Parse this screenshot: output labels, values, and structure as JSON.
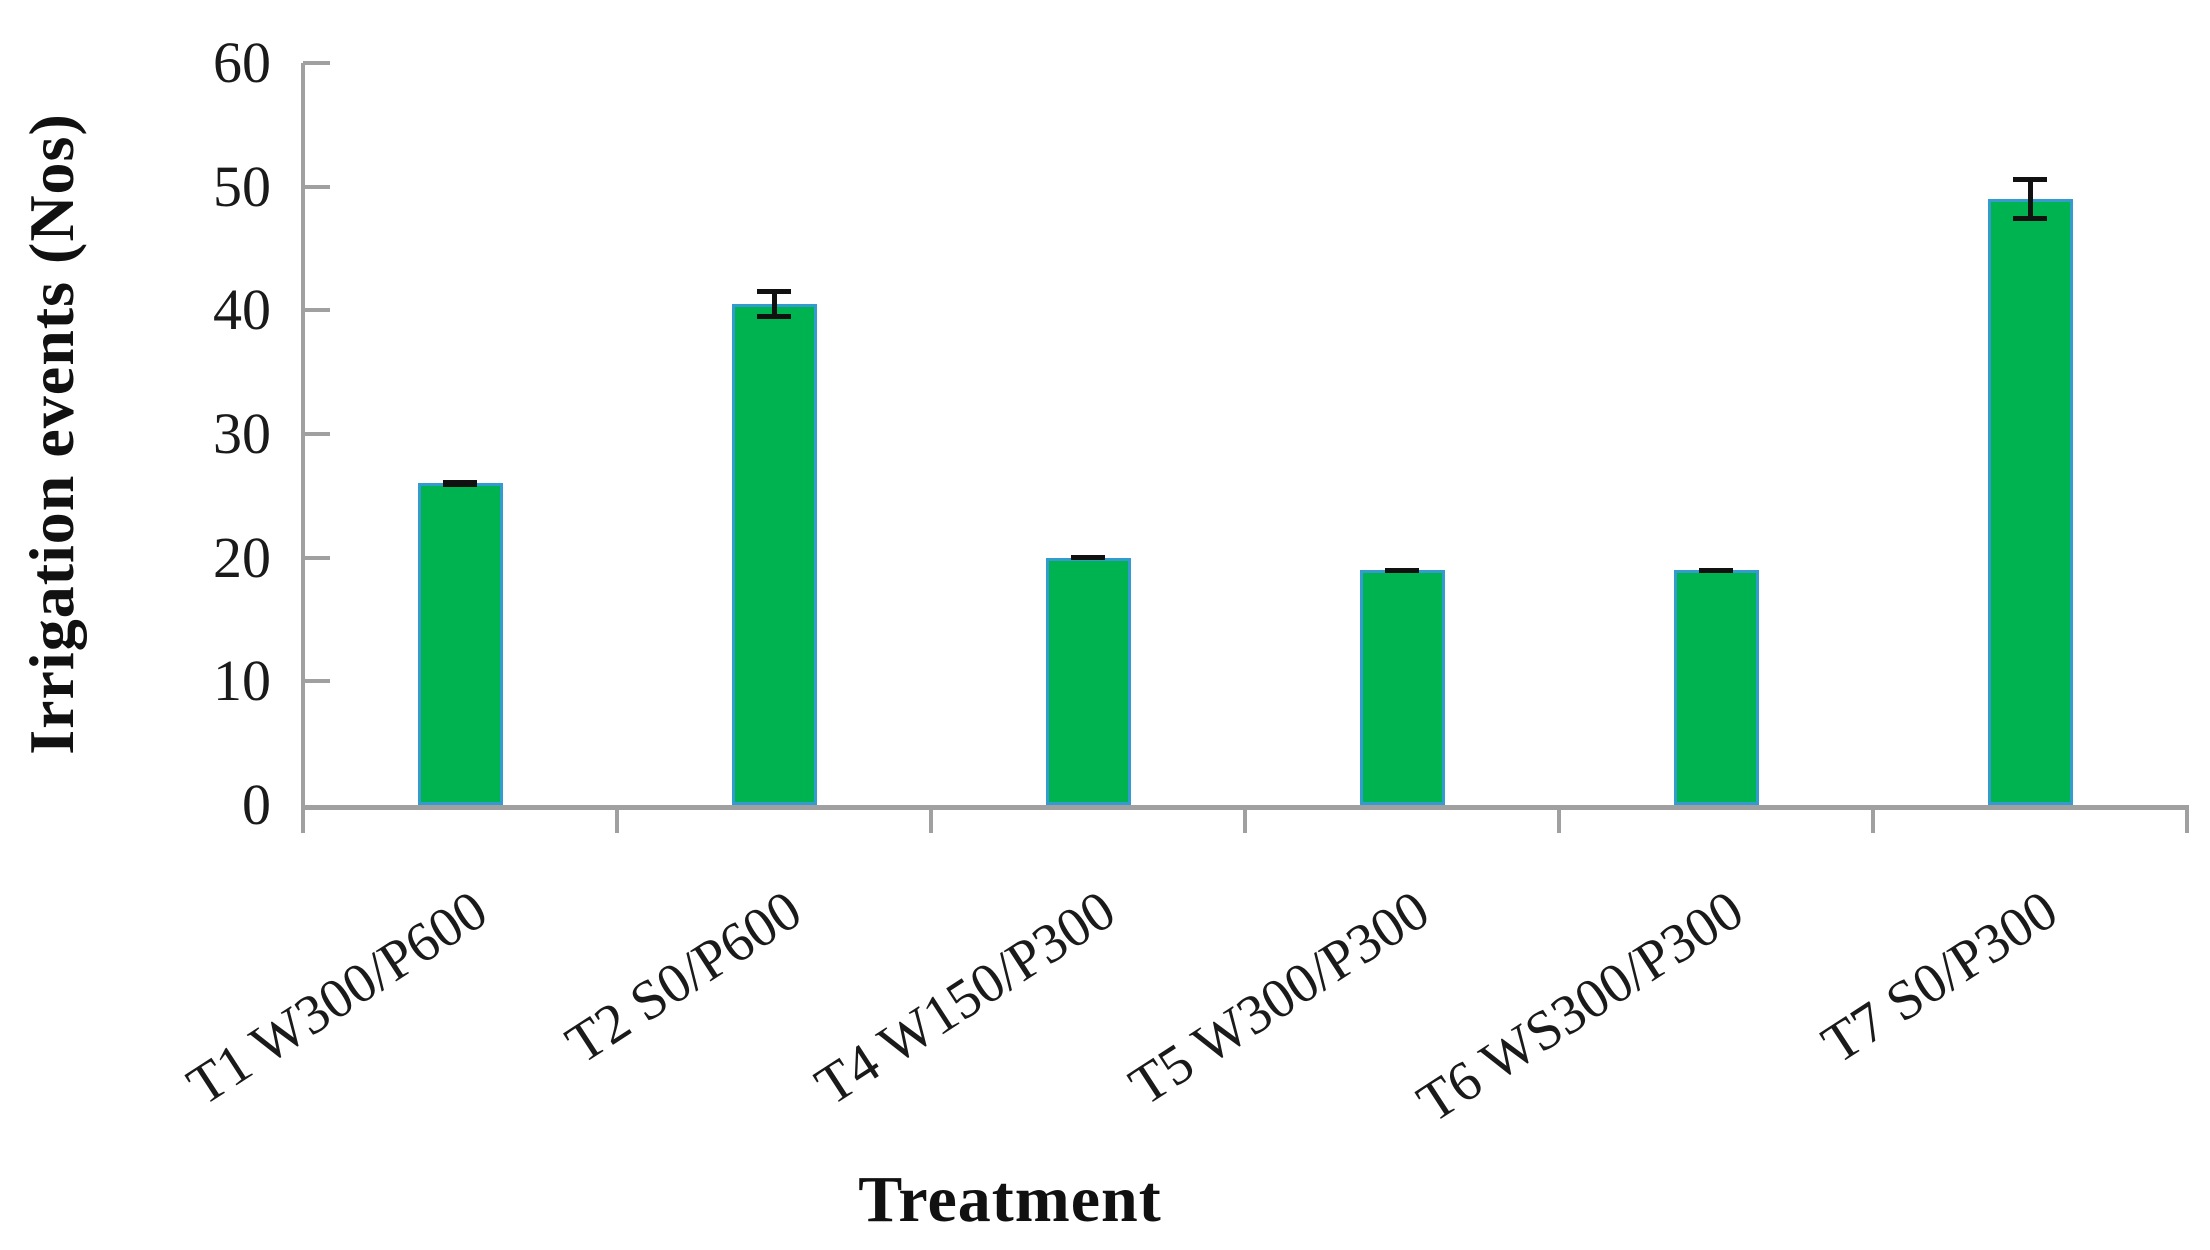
{
  "figure": {
    "background": "#ffffff",
    "axis_color": "#a0a0a0",
    "text_color": "#1a1a1a"
  },
  "chart_data": {
    "type": "bar",
    "title": "",
    "xlabel": "Treatment",
    "ylabel": "Irrigation events (Nos)",
    "categories": [
      "T1 W300/P600",
      "T2 S0/P600",
      "T4 W150/P300",
      "T5 W300/P300",
      "T6 WS300/P300",
      "T7 S0/P300"
    ],
    "values": [
      26,
      40.5,
      20,
      19,
      19,
      49
    ],
    "errors": [
      0.3,
      1.2,
      0.2,
      0.2,
      0.2,
      1.8
    ],
    "ylim": [
      0,
      60
    ],
    "yticks": [
      0,
      10,
      20,
      30,
      40,
      50,
      60
    ],
    "grid": "off",
    "legend": "none",
    "bar_fill": "#00b351",
    "bar_border": "#339bce",
    "error_color": "#111111"
  }
}
